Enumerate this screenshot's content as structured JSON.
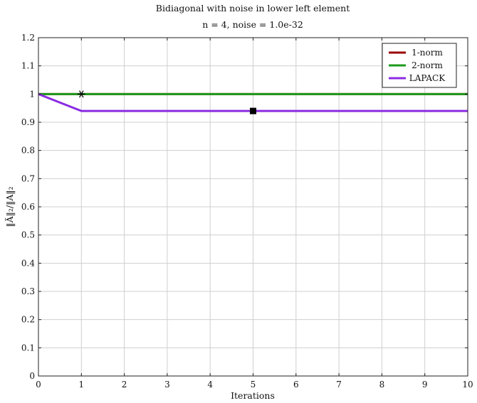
{
  "chart_data": {
    "type": "line",
    "title": "Bidiagonal with noise in lower left element",
    "subtitle": "n = 4, noise = 1.0e-32",
    "xlabel": "Iterations",
    "ylabel": "‖Ã‖₂/‖A‖₂",
    "xlim": [
      0,
      10
    ],
    "ylim": [
      0,
      1.2
    ],
    "xticks": [
      0,
      1,
      2,
      3,
      4,
      5,
      6,
      7,
      8,
      9,
      10
    ],
    "yticks": [
      0,
      0.1,
      0.2,
      0.3,
      0.4,
      0.5,
      0.6,
      0.7,
      0.8,
      0.9,
      1,
      1.1,
      1.2
    ],
    "ytick_labels": [
      "0",
      "0.1",
      "0.2",
      "0.3",
      "0.4",
      "0.5",
      "0.6",
      "0.7",
      "0.8",
      "0.9",
      "1",
      "1.1",
      "1.2"
    ],
    "grid": true,
    "legend_position": "top-right",
    "series": [
      {
        "name": "1-norm",
        "color": "#990000",
        "x": [
          0,
          1,
          2,
          3,
          4,
          5,
          6,
          7,
          8,
          9,
          10
        ],
        "y": [
          1,
          1,
          1,
          1,
          1,
          1,
          1,
          1,
          1,
          1,
          1
        ]
      },
      {
        "name": "2-norm",
        "color": "#1e9a1e",
        "x": [
          0,
          1,
          2,
          3,
          4,
          5,
          6,
          7,
          8,
          9,
          10
        ],
        "y": [
          1,
          1,
          1,
          1,
          1,
          1,
          1,
          1,
          1,
          1,
          1
        ]
      },
      {
        "name": "LAPACK",
        "color": "#8a2be2",
        "x": [
          0,
          1,
          2,
          3,
          4,
          5,
          6,
          7,
          8,
          9,
          10
        ],
        "y": [
          1,
          0.94,
          0.94,
          0.94,
          0.94,
          0.94,
          0.94,
          0.94,
          0.94,
          0.94,
          0.94
        ]
      }
    ],
    "markers": [
      {
        "symbol": "asterisk",
        "x": 1,
        "y": 1,
        "color": "#000000"
      },
      {
        "symbol": "square",
        "x": 5,
        "y": 0.94,
        "color": "#000000"
      }
    ]
  }
}
